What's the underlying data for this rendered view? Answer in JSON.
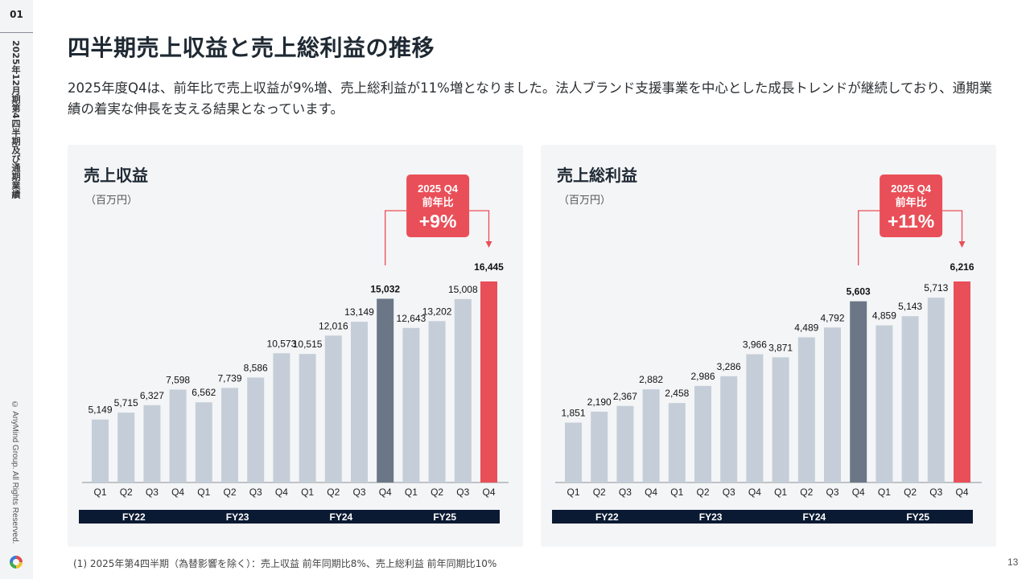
{
  "sidebar": {
    "section_number": "01",
    "vertical_title": "2025年12月期第4四半期及び通期業績",
    "copyright": "© AnyMind Group. All Rights Reserved.",
    "logo_icon": "anymind-logo-icon"
  },
  "header": {
    "title": "四半期売上収益と売上総利益の推移",
    "lead": "2025年度Q4は、前年比で売上収益が9%増、売上総利益が11%増となりました。法人ブランド支援事業を中心とした成長トレンドが継続しており、通期業績の着実な伸長を支える結果となっています。"
  },
  "colors": {
    "bar_default": "#c5ced8",
    "bar_prev_year": "#6b7787",
    "bar_highlight": "#e94f58",
    "fy_band": "#0b1a33",
    "badge": "#e94f58"
  },
  "footnote": "(1) 2025年第4四半期（為替影響を除く）：売上収益 前年同期比8%、売上総利益 前年同期比10%",
  "page_number": "13",
  "chart_data": [
    {
      "type": "bar",
      "title": "売上収益",
      "unit": "（百万円）",
      "categories": [
        "Q1",
        "Q2",
        "Q3",
        "Q4",
        "Q1",
        "Q2",
        "Q3",
        "Q4",
        "Q1",
        "Q2",
        "Q3",
        "Q4",
        "Q1",
        "Q2",
        "Q3",
        "Q4"
      ],
      "fiscal_years": [
        "FY22",
        "FY23",
        "FY24",
        "FY25"
      ],
      "values": [
        5149,
        5715,
        6327,
        7598,
        6562,
        7739,
        8586,
        10573,
        10515,
        12016,
        13149,
        15032,
        12643,
        13202,
        15008,
        16445
      ],
      "value_labels": [
        "5,149",
        "5,715",
        "6,327",
        "7,598",
        "6,562",
        "7,739",
        "8,586",
        "10,573",
        "10,515",
        "12,016",
        "13,149",
        "15,032",
        "12,643",
        "13,202",
        "15,008",
        "16,445"
      ],
      "emphasis": {
        "11": "prev",
        "15": "highlight"
      },
      "ylim": [
        0,
        16445
      ],
      "badge": {
        "line1": "2025 Q4",
        "line2": "前年比",
        "line3": "+9%"
      },
      "grid": false
    },
    {
      "type": "bar",
      "title": "売上総利益",
      "unit": "（百万円）",
      "categories": [
        "Q1",
        "Q2",
        "Q3",
        "Q4",
        "Q1",
        "Q2",
        "Q3",
        "Q4",
        "Q1",
        "Q2",
        "Q3",
        "Q4",
        "Q1",
        "Q2",
        "Q3",
        "Q4"
      ],
      "fiscal_years": [
        "FY22",
        "FY23",
        "FY24",
        "FY25"
      ],
      "values": [
        1851,
        2190,
        2367,
        2882,
        2458,
        2986,
        3286,
        3966,
        3871,
        4489,
        4792,
        5603,
        4859,
        5143,
        5713,
        6216
      ],
      "value_labels": [
        "1,851",
        "2,190",
        "2,367",
        "2,882",
        "2,458",
        "2,986",
        "3,286",
        "3,966",
        "3,871",
        "4,489",
        "4,792",
        "5,603",
        "4,859",
        "5,143",
        "5,713",
        "6,216"
      ],
      "emphasis": {
        "11": "prev",
        "15": "highlight"
      },
      "ylim": [
        0,
        6216
      ],
      "badge": {
        "line1": "2025 Q4",
        "line2": "前年比",
        "line3": "+11%"
      },
      "grid": false
    }
  ]
}
